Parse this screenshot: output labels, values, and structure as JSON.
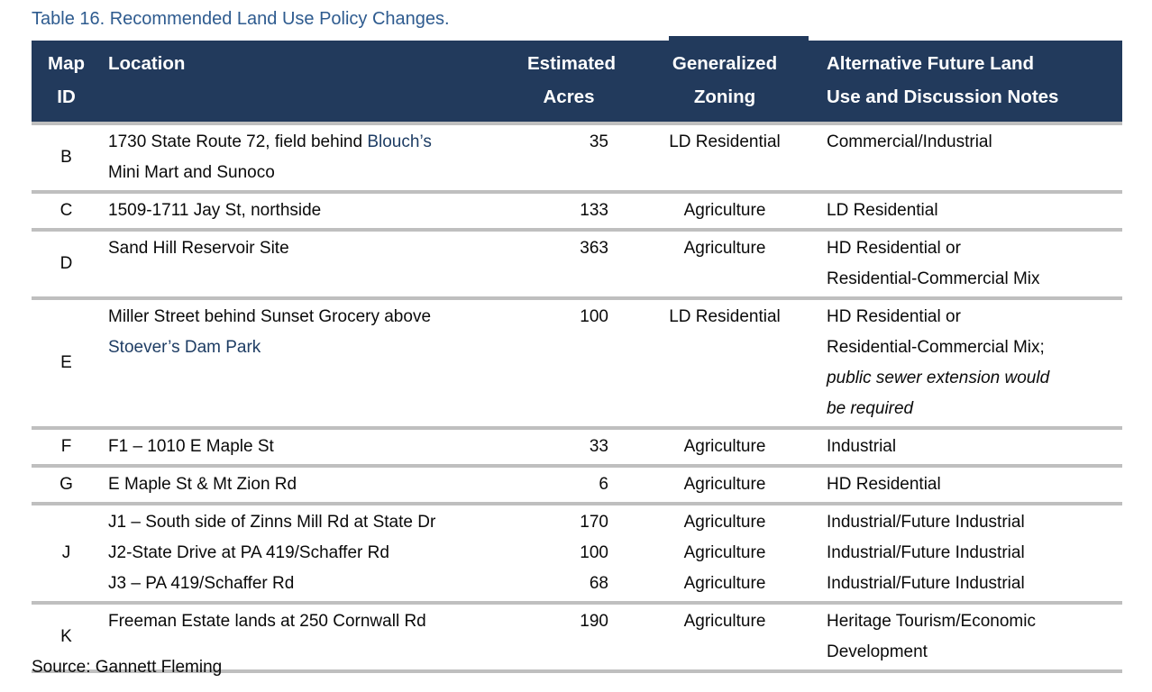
{
  "title": "Table 16. Recommended Land Use Policy Changes.",
  "source": "Source: Gannett Fleming",
  "colors": {
    "header_bg": "#223a5c",
    "caption_blue": "#2e5b8f",
    "place_name_navy": "#1e3d64",
    "separator_gray": "#bfbfbf",
    "body_text": "#0a0a0a"
  },
  "table": {
    "columns": [
      {
        "key": "id",
        "lines": [
          "Map",
          "ID"
        ],
        "align": "center"
      },
      {
        "key": "location",
        "lines": [
          "Location"
        ],
        "align": "left"
      },
      {
        "key": "acres",
        "lines": [
          "Estimated",
          "Acres"
        ],
        "align": "center"
      },
      {
        "key": "zoning",
        "lines": [
          "Generalized",
          "Zoning"
        ],
        "align": "center"
      },
      {
        "key": "notes",
        "lines": [
          "Alternative Future Land",
          "Use and Discussion Notes"
        ],
        "align": "left"
      }
    ],
    "rows": [
      {
        "id": "B",
        "location": [
          [
            {
              "text": "1730 State Route 72, field behind ",
              "style": "plain"
            },
            {
              "text": "Blouch’s",
              "style": "navy"
            }
          ],
          [
            {
              "text": "Mini Mart and Sunoco",
              "style": "plain"
            }
          ]
        ],
        "acres": [
          "35"
        ],
        "zoning": [
          "LD Residential"
        ],
        "notes": [
          [
            {
              "text": "Commercial/Industrial",
              "style": "plain"
            }
          ]
        ]
      },
      {
        "id": "C",
        "location": [
          [
            {
              "text": "1509-1711 Jay St, northside",
              "style": "plain"
            }
          ]
        ],
        "acres": [
          "133"
        ],
        "zoning": [
          "Agriculture"
        ],
        "notes": [
          [
            {
              "text": "LD Residential",
              "style": "plain"
            }
          ]
        ]
      },
      {
        "id": "D",
        "location": [
          [
            {
              "text": "Sand Hill Reservoir Site",
              "style": "plain"
            }
          ]
        ],
        "acres": [
          "363"
        ],
        "zoning": [
          "Agriculture"
        ],
        "notes": [
          [
            {
              "text": "HD Residential or",
              "style": "plain"
            }
          ],
          [
            {
              "text": "Residential-Commercial Mix",
              "style": "plain"
            }
          ]
        ]
      },
      {
        "id": "E",
        "location": [
          [
            {
              "text": "Miller Street behind Sunset Grocery above",
              "style": "plain"
            }
          ],
          [
            {
              "text": "Stoever’s Dam Park",
              "style": "navy"
            }
          ]
        ],
        "acres": [
          "100"
        ],
        "zoning": [
          "LD Residential"
        ],
        "notes": [
          [
            {
              "text": "HD Residential or",
              "style": "plain"
            }
          ],
          [
            {
              "text": "Residential-Commercial Mix;",
              "style": "plain"
            }
          ],
          [
            {
              "text": "public sewer extension would",
              "style": "italic"
            }
          ],
          [
            {
              "text": "be required",
              "style": "italic"
            }
          ]
        ]
      },
      {
        "id": "F",
        "location": [
          [
            {
              "text": "F1 – 1010 E Maple St",
              "style": "plain"
            }
          ]
        ],
        "acres": [
          "33"
        ],
        "zoning": [
          "Agriculture"
        ],
        "notes": [
          [
            {
              "text": "Industrial",
              "style": "plain"
            }
          ]
        ]
      },
      {
        "id": "G",
        "location": [
          [
            {
              "text": "E Maple St & Mt Zion Rd",
              "style": "plain"
            }
          ]
        ],
        "acres": [
          "6"
        ],
        "zoning": [
          "Agriculture"
        ],
        "notes": [
          [
            {
              "text": "HD Residential",
              "style": "plain"
            }
          ]
        ]
      },
      {
        "id": "J",
        "location": [
          [
            {
              "text": "J1 – South side of Zinns Mill Rd at State Dr",
              "style": "plain"
            }
          ],
          [
            {
              "text": "J2-State Drive at PA 419/Schaffer Rd",
              "style": "plain"
            }
          ],
          [
            {
              "text": "J3 – PA 419/Schaffer Rd",
              "style": "plain"
            }
          ]
        ],
        "acres": [
          "170",
          "100",
          "68"
        ],
        "zoning": [
          "Agriculture",
          "Agriculture",
          "Agriculture"
        ],
        "notes": [
          [
            {
              "text": "Industrial/Future Industrial",
              "style": "plain"
            }
          ],
          [
            {
              "text": "Industrial/Future Industrial",
              "style": "plain"
            }
          ],
          [
            {
              "text": "Industrial/Future Industrial",
              "style": "plain"
            }
          ]
        ]
      },
      {
        "id": "K",
        "location": [
          [
            {
              "text": "Freeman Estate lands at 250 Cornwall Rd",
              "style": "plain"
            }
          ]
        ],
        "acres": [
          "190"
        ],
        "zoning": [
          "Agriculture"
        ],
        "notes": [
          [
            {
              "text": "Heritage Tourism/Economic",
              "style": "plain"
            }
          ],
          [
            {
              "text": "Development",
              "style": "plain"
            }
          ]
        ]
      }
    ]
  }
}
